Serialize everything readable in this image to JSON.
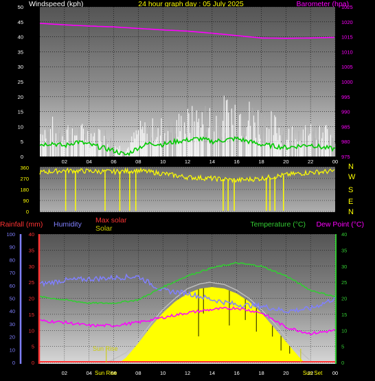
{
  "header": {
    "title": "24 hour graph day : 05 July 2025"
  },
  "colors": {
    "windspeed": "#ffffff",
    "wind_gust": "#b0b0b0",
    "wind_avg": "#00cc00",
    "barometer": "#ff00ff",
    "direction": "#ffff00",
    "rainfall": "#ff3333",
    "humidity": "#8080ff",
    "max_solar": "#ff3333",
    "solar": "#ffff00",
    "solar_curve": "#c0c0c0",
    "temperature": "#33cc33",
    "dew_point": "#ff00ff",
    "sun_label": "#cccc00"
  },
  "chart_data": [
    {
      "type": "line",
      "name": "wind-barometer",
      "labels": {
        "left": "Windspeed (kph)",
        "right": "Barometer (hpa)"
      },
      "x_ticks": [
        "02",
        "04",
        "06",
        "08",
        "10",
        "12",
        "14",
        "16",
        "18",
        "20",
        "22",
        "00"
      ],
      "left_axis": {
        "ylim": [
          0,
          50
        ],
        "ticks": [
          0,
          5,
          10,
          15,
          20,
          25,
          30,
          35,
          40,
          45,
          50
        ]
      },
      "right_axis": {
        "ylim": [
          975,
          1025
        ],
        "ticks": [
          975,
          980,
          985,
          990,
          995,
          1000,
          1005,
          1010,
          1015,
          1020,
          1025
        ]
      },
      "barometer": {
        "x": [
          0,
          2,
          4,
          6,
          8,
          10,
          12,
          14,
          16,
          18,
          20,
          22,
          24
        ],
        "y": [
          1019.5,
          1019.0,
          1018.6,
          1018.3,
          1017.8,
          1017.3,
          1016.9,
          1016.2,
          1015.4,
          1014.6,
          1014.5,
          1014.6,
          1014.8
        ]
      },
      "wind_gust_envelope": {
        "x": [
          0,
          1,
          2,
          3,
          4,
          5,
          6,
          7,
          8,
          9,
          10,
          11,
          12,
          13,
          14,
          15,
          16,
          17,
          18,
          19,
          20,
          21,
          22,
          23,
          24
        ],
        "y": [
          12,
          14,
          13,
          12,
          11,
          12,
          6,
          3,
          12,
          13,
          14,
          15,
          17,
          18,
          19,
          21,
          23,
          20,
          18,
          15,
          13,
          12,
          11,
          12,
          12
        ]
      },
      "wind_average": {
        "x": [
          0,
          1,
          2,
          3,
          4,
          5,
          6,
          7,
          8,
          9,
          10,
          11,
          12,
          13,
          14,
          15,
          16,
          17,
          18,
          19,
          20,
          21,
          22,
          23,
          24
        ],
        "y": [
          4,
          4.5,
          3.5,
          5,
          4,
          3,
          2,
          0.5,
          3,
          4.5,
          4,
          5,
          5.5,
          6,
          5,
          5.5,
          6,
          5,
          4,
          3.5,
          3,
          3.5,
          4,
          3,
          2.5
        ]
      }
    },
    {
      "type": "scatter",
      "name": "wind-direction",
      "left_axis": {
        "ylim": [
          0,
          360
        ],
        "ticks": [
          0,
          90,
          180,
          270,
          360
        ]
      },
      "compass_labels": [
        "N",
        "W",
        "S",
        "E",
        "N"
      ],
      "direction_trace": {
        "x": [
          0,
          2,
          4,
          6,
          8,
          10,
          12,
          14,
          16,
          18,
          20,
          22,
          24
        ],
        "y": [
          320,
          335,
          330,
          325,
          335,
          310,
          280,
          270,
          255,
          270,
          300,
          320,
          330
        ]
      },
      "north_dips_hours": [
        2.1,
        2.9,
        5.3,
        6.5,
        7.3,
        7.8,
        14.9,
        15.3,
        15.8,
        18.4,
        18.7,
        19.1,
        19.8
      ]
    },
    {
      "type": "line",
      "name": "temperature-humidity-solar",
      "labels": {
        "rainfall": "Rainfall (mm)",
        "humidity": "Humidity",
        "max_solar": "Max solar",
        "solar": "Solar",
        "temperature": "Temperature (°C)",
        "dew_point": "Dew Point (°C)",
        "sunrise": "Sun Rise",
        "sunrise_axis": "Sun Rise",
        "sunset_axis": "Sun Set"
      },
      "x_ticks": [
        "02",
        "04",
        "06",
        "08",
        "10",
        "12",
        "14",
        "16",
        "18",
        "20",
        "22",
        "00"
      ],
      "humidity_axis": {
        "ylim": [
          0,
          100
        ],
        "ticks": [
          0,
          10,
          20,
          30,
          40,
          50,
          60,
          70,
          80,
          90,
          100
        ]
      },
      "rain_axis": {
        "ylim": [
          0,
          40
        ],
        "ticks": [
          0,
          5,
          10,
          15,
          20,
          25,
          30,
          35,
          40
        ]
      },
      "temp_axis": {
        "ylim": [
          0,
          40
        ],
        "ticks": [
          0,
          5,
          10,
          15,
          20,
          25,
          30,
          35,
          40
        ]
      },
      "temperature": {
        "x": [
          0,
          2,
          4,
          6,
          8,
          10,
          12,
          14,
          16,
          18,
          20,
          22,
          24
        ],
        "y": [
          20.5,
          19.5,
          18.5,
          18.5,
          19.5,
          23.5,
          27,
          29.5,
          31,
          30,
          27,
          22.5,
          20.5
        ]
      },
      "dew_point": {
        "x": [
          0,
          2,
          4,
          6,
          8,
          10,
          12,
          14,
          16,
          18,
          20,
          22,
          24
        ],
        "y": [
          13,
          12.5,
          11.5,
          11.5,
          12.5,
          14,
          15.5,
          16.5,
          17,
          15.5,
          11,
          9,
          10
        ]
      },
      "humidity": {
        "x": [
          0,
          2,
          4,
          6,
          8,
          10,
          12,
          14,
          16,
          18,
          20,
          22,
          24
        ],
        "y": [
          61,
          64,
          65,
          66,
          67,
          56,
          54,
          49,
          45,
          44,
          40,
          42,
          50
        ]
      },
      "solar_max_curve": {
        "x": [
          5.5,
          7,
          8,
          9,
          10,
          11,
          12,
          13,
          13.8,
          15,
          16,
          17,
          18,
          19,
          20,
          21,
          22
        ],
        "y": [
          0,
          3,
          7,
          12,
          16.5,
          20,
          23,
          24.5,
          25,
          24.3,
          22.5,
          20,
          16.5,
          12.5,
          8,
          4,
          0.5
        ]
      },
      "solar": {
        "x": [
          6.5,
          7,
          8,
          9,
          10,
          11,
          12,
          13,
          14,
          15,
          16,
          17,
          18,
          19,
          20,
          21,
          21.5
        ],
        "y": [
          0,
          1.5,
          6,
          11,
          15.5,
          19,
          21.5,
          23,
          23.5,
          23,
          21.5,
          19,
          15.5,
          11,
          6.5,
          2,
          0
        ]
      },
      "sunrise_hour": 5.4,
      "sunset_hour": 21.2
    }
  ]
}
